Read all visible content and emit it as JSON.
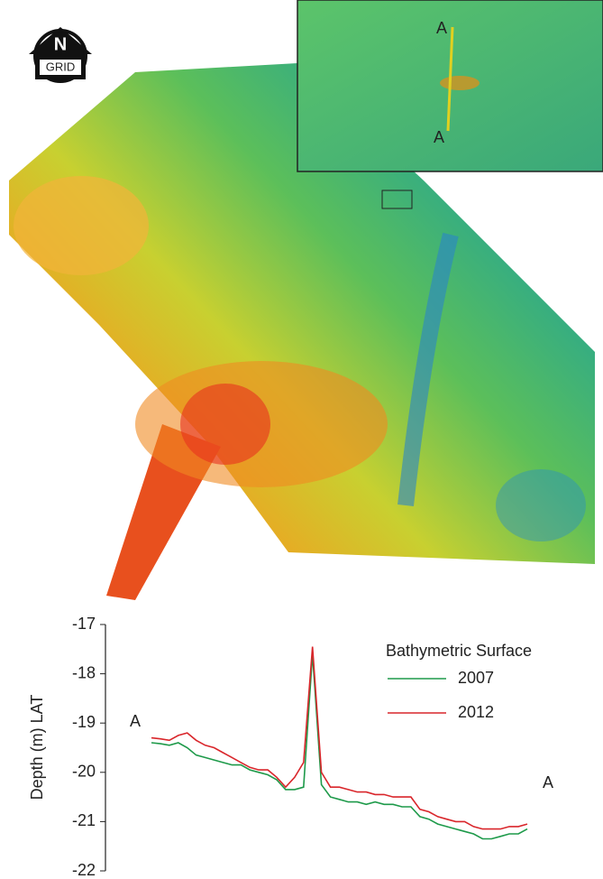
{
  "map": {
    "north_label": "N",
    "grid_label": "GRID",
    "section_start": "A",
    "section_end": "A"
  },
  "chart_data": {
    "type": "line",
    "y_label": "Depth (m) LAT",
    "legend_title": "Bathymetric Surface",
    "start_label": "A",
    "end_label": "A",
    "ylim": [
      -22,
      -17
    ],
    "yticks": [
      -17,
      -18,
      -19,
      -20,
      -21,
      -22
    ],
    "series": [
      {
        "name": "2007",
        "color": "#1e9a4a",
        "values": [
          -19.4,
          -19.42,
          -19.45,
          -19.4,
          -19.5,
          -19.65,
          -19.7,
          -19.75,
          -19.8,
          -19.85,
          -19.85,
          -19.95,
          -20.0,
          -20.05,
          -20.15,
          -20.35,
          -20.35,
          -20.3,
          -17.6,
          -20.25,
          -20.5,
          -20.55,
          -20.6,
          -20.6,
          -20.65,
          -20.6,
          -20.65,
          -20.65,
          -20.7,
          -20.7,
          -20.9,
          -20.95,
          -21.05,
          -21.1,
          -21.15,
          -21.2,
          -21.25,
          -21.35,
          -21.35,
          -21.3,
          -21.25,
          -21.25,
          -21.15
        ]
      },
      {
        "name": "2012",
        "color": "#d9262b",
        "values": [
          -19.3,
          -19.32,
          -19.35,
          -19.25,
          -19.2,
          -19.35,
          -19.45,
          -19.5,
          -19.6,
          -19.7,
          -19.8,
          -19.9,
          -19.95,
          -19.95,
          -20.1,
          -20.3,
          -20.1,
          -19.8,
          -17.45,
          -20.0,
          -20.3,
          -20.3,
          -20.35,
          -20.4,
          -20.4,
          -20.45,
          -20.45,
          -20.5,
          -20.5,
          -20.5,
          -20.75,
          -20.8,
          -20.9,
          -20.95,
          -21.0,
          -21.0,
          -21.1,
          -21.15,
          -21.15,
          -21.15,
          -21.1,
          -21.1,
          -21.05
        ]
      }
    ]
  }
}
